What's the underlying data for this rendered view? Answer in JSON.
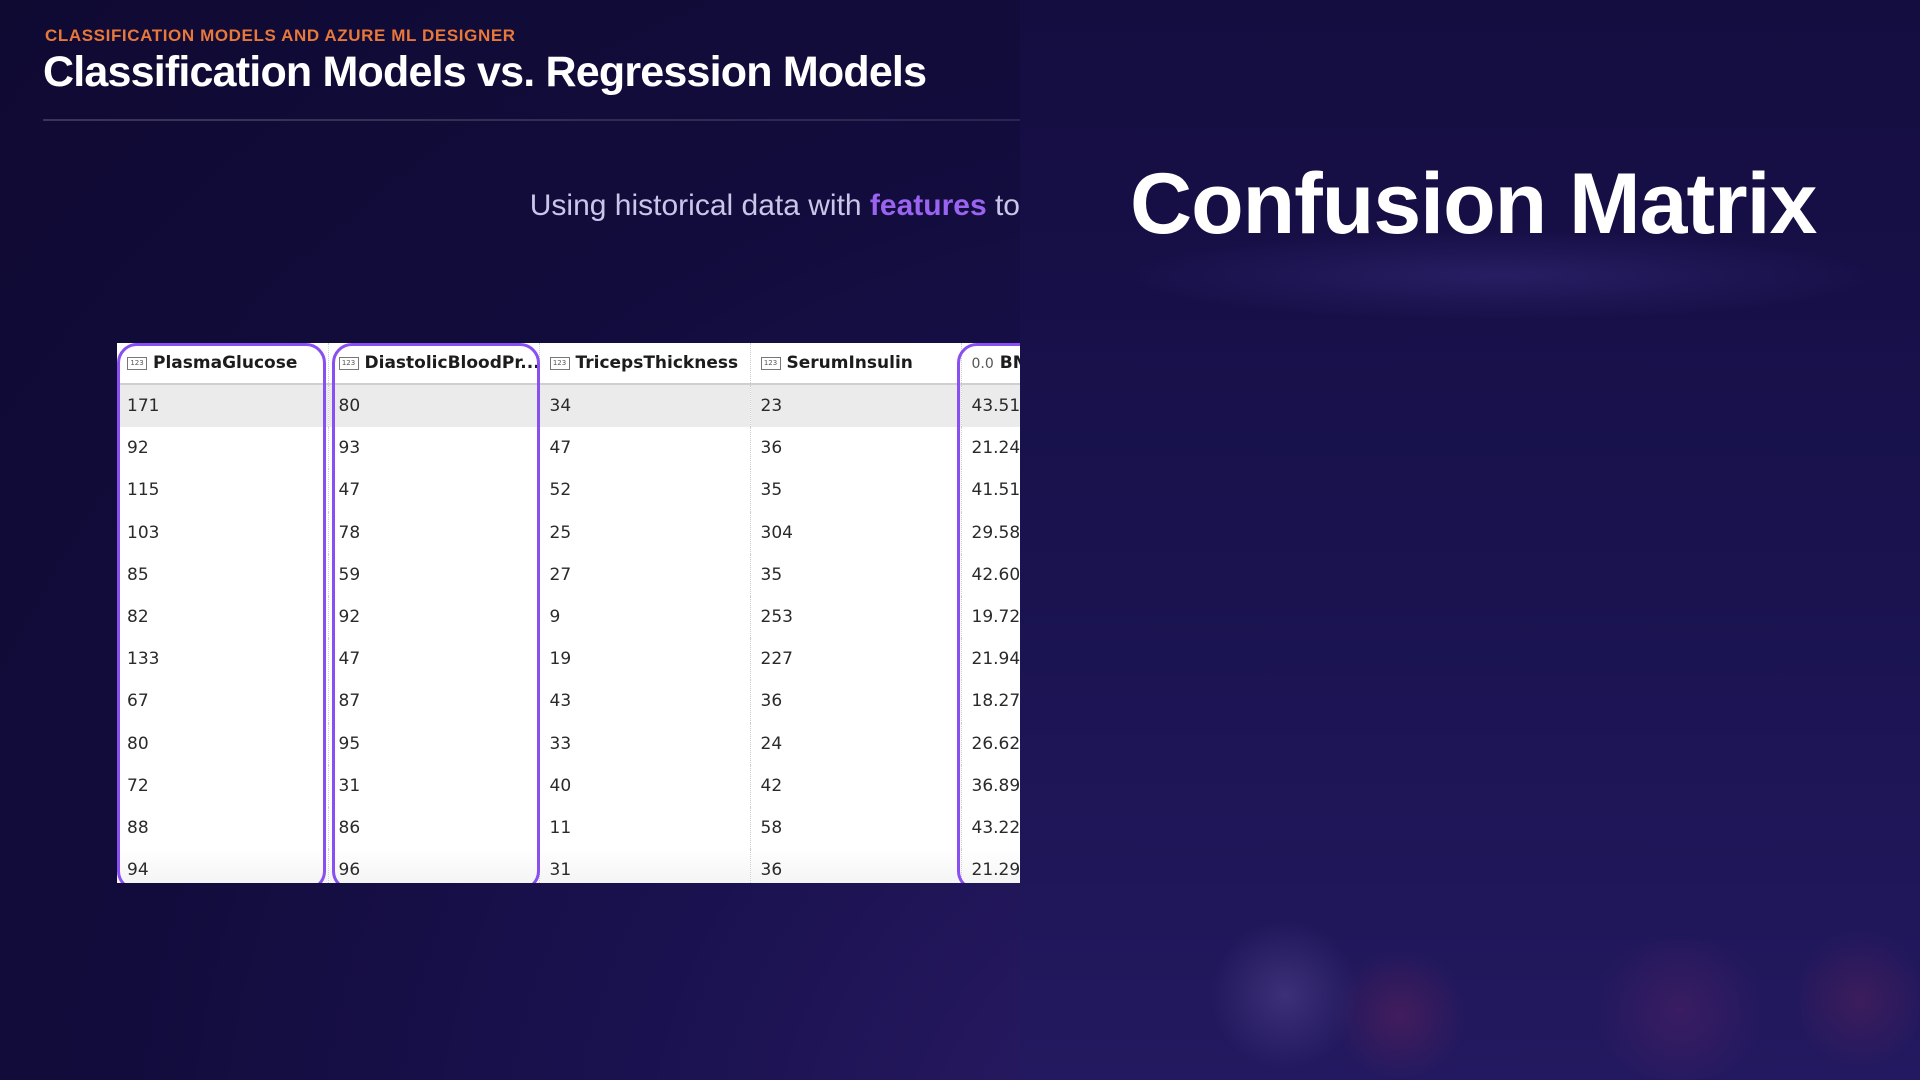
{
  "header": {
    "kicker": "CLASSIFICATION MODELS AND AZURE ML DESIGNER",
    "title": "Classification Models vs. Regression Models"
  },
  "subtitle": {
    "prefix": "Using historical data with ",
    "highlight": "features",
    "suffix": " to"
  },
  "right_panel": {
    "title": "Confusion Matrix"
  },
  "table": {
    "columns": [
      {
        "name": "PlasmaGlucose",
        "type_icon": "123"
      },
      {
        "name": "DiastolicBloodPr...",
        "type_icon": "123"
      },
      {
        "name": "TricepsThickness",
        "type_icon": "123"
      },
      {
        "name": "SerumInsulin",
        "type_icon": "123"
      },
      {
        "name": "BM",
        "type_icon": "0.0"
      }
    ],
    "rows": [
      [
        "171",
        "80",
        "34",
        "23",
        "43.51"
      ],
      [
        "92",
        "93",
        "47",
        "36",
        "21.24"
      ],
      [
        "115",
        "47",
        "52",
        "35",
        "41.51"
      ],
      [
        "103",
        "78",
        "25",
        "304",
        "29.58"
      ],
      [
        "85",
        "59",
        "27",
        "35",
        "42.60"
      ],
      [
        "82",
        "92",
        "9",
        "253",
        "19.72"
      ],
      [
        "133",
        "47",
        "19",
        "227",
        "21.94"
      ],
      [
        "67",
        "87",
        "43",
        "36",
        "18.27"
      ],
      [
        "80",
        "95",
        "33",
        "24",
        "26.62"
      ],
      [
        "72",
        "31",
        "40",
        "42",
        "36.89"
      ],
      [
        "88",
        "86",
        "11",
        "58",
        "43.22"
      ],
      [
        "94",
        "96",
        "31",
        "36",
        "21.29"
      ]
    ],
    "highlight_color": "#8a4ff0"
  },
  "colors": {
    "kicker": "#e8773a",
    "highlight_text": "#9a63f0",
    "background": "#120c3c"
  }
}
